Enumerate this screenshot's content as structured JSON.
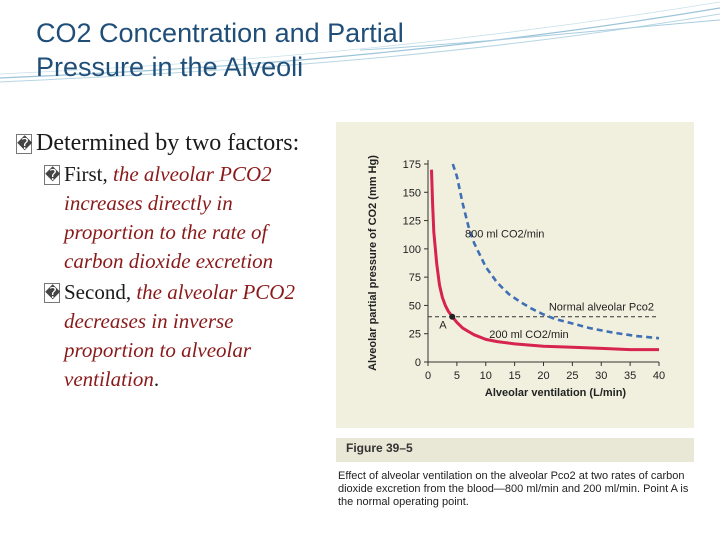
{
  "slide": {
    "title_lines": [
      "CO2 Concentration and Partial",
      "Pressure in the Alveoli"
    ],
    "bullet_main": {
      "glyph": "�",
      "text": "Determined by two factors:"
    },
    "sub_bullets": [
      {
        "glyph": "�",
        "lead": "First, ",
        "italic": "the alveolar PCO2 increases directly in proportion to the rate of carbon dioxide excretion"
      },
      {
        "glyph": "�",
        "lead": "Second, ",
        "italic": "the alveolar PCO2 decreases in inverse proportion to alveolar ventilation",
        "tail": "."
      }
    ]
  },
  "figure": {
    "label": "Figure 39–5",
    "caption": "Effect of alveolar ventilation on the alveolar Pco2 at two rates of carbon dioxide excretion from the blood—800 ml/min and 200 ml/min. Point A is the normal operating point."
  },
  "chart_data": {
    "type": "line",
    "xlabel": "Alveolar ventilation (L/min)",
    "ylabel": "Alveolar partial pressure of CO2 (mm Hg)",
    "xlim": [
      0,
      40
    ],
    "ylim": [
      0,
      175
    ],
    "xticks": [
      0,
      5,
      10,
      15,
      20,
      25,
      30,
      35,
      40
    ],
    "yticks": [
      0,
      25,
      50,
      75,
      100,
      125,
      150,
      175
    ],
    "grid": false,
    "series": [
      {
        "name": "800 ml CO2/min",
        "style": "dashed",
        "color": "#3f6fb5",
        "x": [
          4.3,
          5,
          6,
          7,
          8,
          10,
          12,
          14,
          16,
          18,
          20,
          22,
          25,
          28,
          32,
          36,
          40
        ],
        "y": [
          175,
          164,
          140,
          120,
          105,
          84,
          70,
          60,
          53,
          47,
          42,
          38,
          34,
          30,
          26,
          23,
          21
        ]
      },
      {
        "name": "200 ml CO2/min",
        "style": "solid",
        "color": "#d6244f",
        "x": [
          0.6,
          0.8,
          1,
          1.5,
          2,
          2.5,
          3,
          3.5,
          4.2,
          5,
          6,
          7,
          8,
          10,
          12,
          15,
          20,
          25,
          30,
          35,
          40
        ],
        "y": [
          170,
          140,
          115,
          87,
          68,
          57,
          50,
          45,
          40,
          35,
          30,
          27,
          24,
          20,
          18,
          16,
          14,
          13,
          12,
          11,
          11
        ]
      }
    ],
    "reference_line": {
      "label": "Normal alveolar Pco2",
      "y": 40,
      "style": "dashed",
      "color": "#333333"
    },
    "annotations": [
      {
        "text": "A",
        "x": 4.2,
        "y": 40
      }
    ]
  }
}
